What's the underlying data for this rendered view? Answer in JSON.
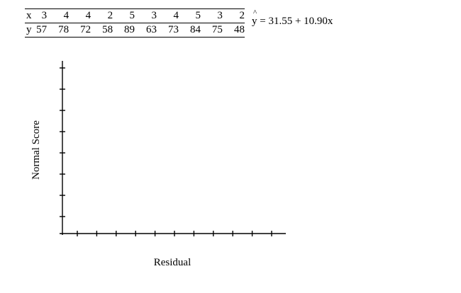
{
  "table": {
    "x_label": "x",
    "y_label": "y",
    "x_values": [
      "3",
      "4",
      "4",
      "2",
      "5",
      "3",
      "4",
      "5",
      "3",
      "2"
    ],
    "y_values": [
      "57",
      "78",
      "72",
      "58",
      "89",
      "63",
      "73",
      "84",
      "75",
      "48"
    ]
  },
  "equation": {
    "lhs": "y",
    "hat": "^",
    "rhs": " = 31.55 + 10.90x"
  },
  "plot": {
    "ylabel": "Normal Score",
    "xlabel": "Residual",
    "y_tick_count": 8,
    "x_tick_count": 11
  }
}
